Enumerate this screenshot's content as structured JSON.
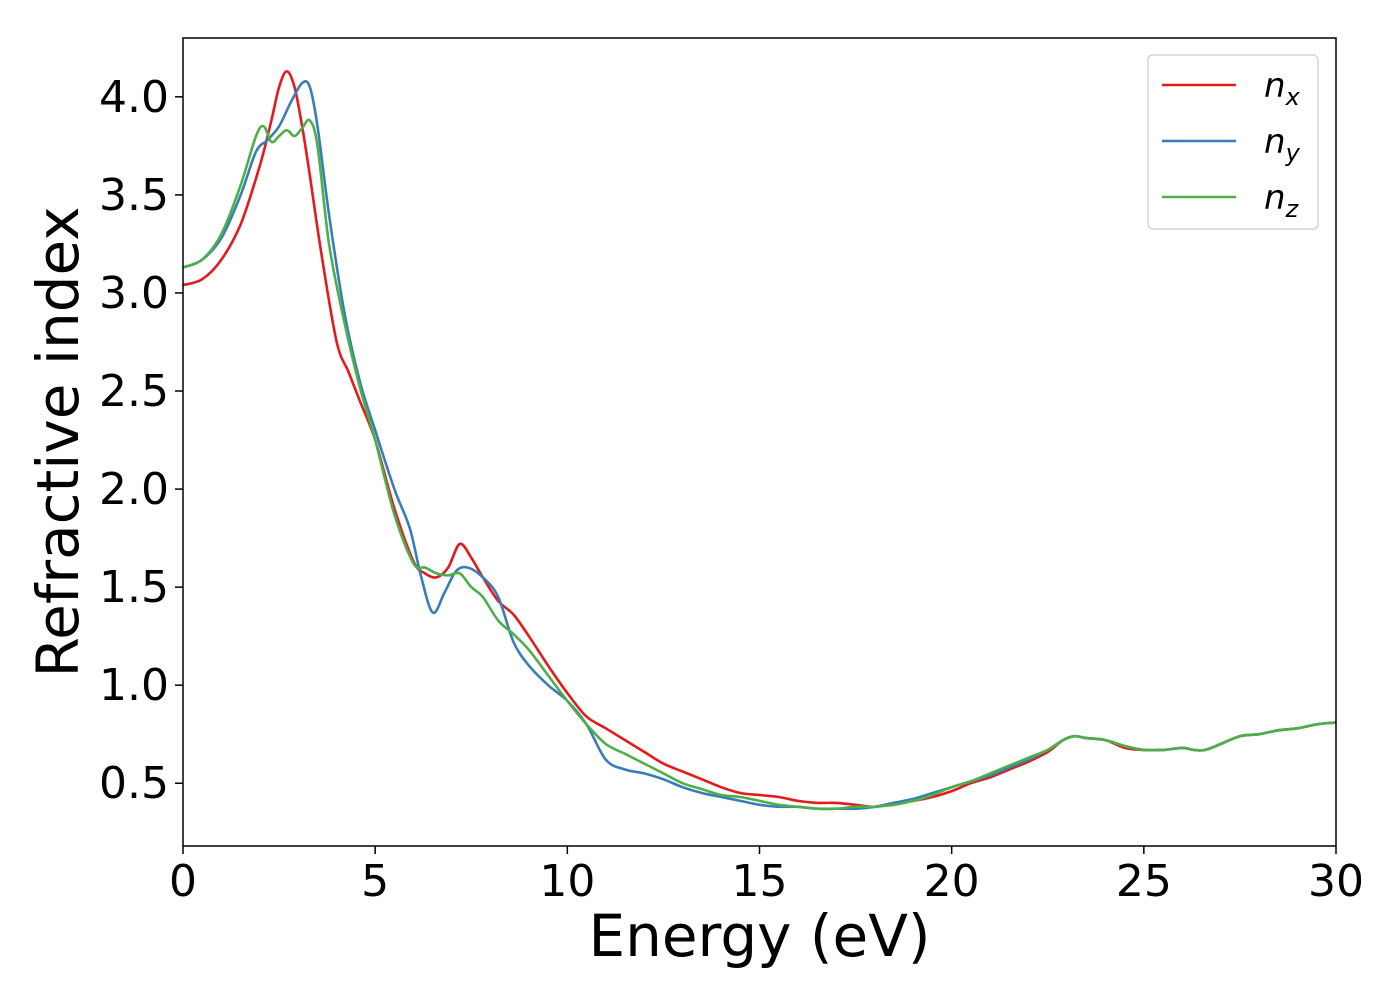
{
  "chart_data": {
    "type": "line",
    "title": "",
    "xlabel": "Energy (eV)",
    "ylabel": "Refractive index",
    "xlim": [
      0,
      30
    ],
    "ylim": [
      0.18,
      4.3
    ],
    "xticks": [
      "0",
      "5",
      "10",
      "15",
      "20",
      "25",
      "30"
    ],
    "yticks": [
      "0.5",
      "1.0",
      "1.5",
      "2.0",
      "2.5",
      "3.0",
      "3.5",
      "4.0"
    ],
    "grid": false,
    "legend_position": "top-right",
    "series": [
      {
        "name": "n_x",
        "label_main": "n",
        "label_sub": "x",
        "color": "#e41a1c",
        "x": [
          0,
          0.5,
          1.0,
          1.5,
          2.0,
          2.3,
          2.5,
          2.7,
          2.9,
          3.1,
          3.3,
          3.6,
          4.0,
          4.3,
          4.6,
          5.0,
          5.5,
          6.0,
          6.3,
          6.6,
          6.9,
          7.2,
          7.5,
          7.8,
          8.2,
          8.6,
          9.0,
          9.5,
          10.0,
          10.5,
          11.0,
          11.5,
          12.0,
          12.5,
          13.0,
          13.5,
          14.0,
          14.5,
          15.0,
          15.5,
          16.0,
          16.5,
          17.0,
          17.5,
          18.0,
          18.5,
          19.0,
          19.5,
          20.0,
          20.5,
          21.0,
          21.5,
          22.0,
          22.5,
          22.9,
          23.2,
          23.5,
          24.0,
          24.5,
          25.0,
          25.5,
          26.0,
          26.3,
          26.6,
          27.0,
          27.5,
          28.0,
          28.5,
          29.0,
          29.5,
          30.0
        ],
        "y": [
          3.04,
          3.07,
          3.17,
          3.35,
          3.65,
          3.88,
          4.05,
          4.13,
          4.05,
          3.85,
          3.6,
          3.2,
          2.75,
          2.6,
          2.45,
          2.25,
          1.9,
          1.63,
          1.57,
          1.55,
          1.6,
          1.72,
          1.65,
          1.55,
          1.43,
          1.36,
          1.25,
          1.1,
          0.96,
          0.84,
          0.78,
          0.72,
          0.66,
          0.6,
          0.56,
          0.52,
          0.48,
          0.45,
          0.44,
          0.43,
          0.41,
          0.4,
          0.4,
          0.39,
          0.38,
          0.4,
          0.41,
          0.43,
          0.46,
          0.5,
          0.53,
          0.57,
          0.61,
          0.66,
          0.72,
          0.74,
          0.73,
          0.72,
          0.68,
          0.67,
          0.67,
          0.68,
          0.67,
          0.67,
          0.7,
          0.74,
          0.75,
          0.77,
          0.78,
          0.8,
          0.81
        ]
      },
      {
        "name": "n_y",
        "label_main": "n",
        "label_sub": "y",
        "color": "#377eb8",
        "x": [
          0,
          0.5,
          1.0,
          1.5,
          1.9,
          2.2,
          2.5,
          2.8,
          3.1,
          3.3,
          3.5,
          3.8,
          4.2,
          4.6,
          5.0,
          5.5,
          5.9,
          6.2,
          6.5,
          6.8,
          7.1,
          7.4,
          7.8,
          8.2,
          8.6,
          9.0,
          9.5,
          10.0,
          10.5,
          11.0,
          11.5,
          12.0,
          12.5,
          13.0,
          13.5,
          14.0,
          14.5,
          15.0,
          15.5,
          16.0,
          16.5,
          17.0,
          17.5,
          18.0,
          18.5,
          19.0,
          19.5,
          20.0,
          20.5,
          21.0,
          21.5,
          22.0,
          22.5,
          22.9,
          23.2,
          23.5,
          24.0,
          24.5,
          25.0,
          25.5,
          26.0,
          26.3,
          26.6,
          27.0,
          27.5,
          28.0,
          28.5,
          29.0,
          29.5,
          30.0
        ],
        "y": [
          3.13,
          3.17,
          3.28,
          3.5,
          3.72,
          3.78,
          3.85,
          3.97,
          4.07,
          4.05,
          3.85,
          3.4,
          2.9,
          2.55,
          2.3,
          2.0,
          1.8,
          1.55,
          1.37,
          1.47,
          1.58,
          1.6,
          1.55,
          1.45,
          1.22,
          1.1,
          1.0,
          0.92,
          0.8,
          0.62,
          0.57,
          0.55,
          0.52,
          0.48,
          0.45,
          0.43,
          0.41,
          0.39,
          0.38,
          0.38,
          0.37,
          0.37,
          0.37,
          0.38,
          0.4,
          0.42,
          0.45,
          0.48,
          0.51,
          0.54,
          0.58,
          0.62,
          0.67,
          0.72,
          0.74,
          0.73,
          0.72,
          0.69,
          0.67,
          0.67,
          0.68,
          0.67,
          0.67,
          0.7,
          0.74,
          0.75,
          0.77,
          0.78,
          0.8,
          0.81
        ]
      },
      {
        "name": "n_z",
        "label_main": "n",
        "label_sub": "z",
        "color": "#4daf4a",
        "x": [
          0,
          0.5,
          1.0,
          1.5,
          1.9,
          2.1,
          2.3,
          2.5,
          2.7,
          2.9,
          3.1,
          3.3,
          3.5,
          3.8,
          4.2,
          4.6,
          5.0,
          5.5,
          6.0,
          6.3,
          6.6,
          6.9,
          7.2,
          7.5,
          7.8,
          8.2,
          8.6,
          9.0,
          9.5,
          10.0,
          10.5,
          11.0,
          11.5,
          12.0,
          12.5,
          13.0,
          13.5,
          14.0,
          14.5,
          15.0,
          15.5,
          16.0,
          16.5,
          17.0,
          17.5,
          18.0,
          18.5,
          19.0,
          19.5,
          20.0,
          20.5,
          21.0,
          21.5,
          22.0,
          22.5,
          22.9,
          23.2,
          23.5,
          24.0,
          24.5,
          25.0,
          25.5,
          26.0,
          26.3,
          26.6,
          27.0,
          27.5,
          28.0,
          28.5,
          29.0,
          29.5,
          30.0
        ],
        "y": [
          3.13,
          3.17,
          3.3,
          3.55,
          3.8,
          3.85,
          3.77,
          3.8,
          3.83,
          3.8,
          3.84,
          3.88,
          3.75,
          3.25,
          2.85,
          2.52,
          2.25,
          1.87,
          1.62,
          1.6,
          1.57,
          1.56,
          1.57,
          1.5,
          1.45,
          1.33,
          1.26,
          1.18,
          1.05,
          0.92,
          0.8,
          0.7,
          0.65,
          0.6,
          0.55,
          0.5,
          0.47,
          0.44,
          0.43,
          0.41,
          0.39,
          0.38,
          0.37,
          0.37,
          0.38,
          0.38,
          0.39,
          0.41,
          0.44,
          0.48,
          0.51,
          0.55,
          0.59,
          0.63,
          0.67,
          0.72,
          0.74,
          0.73,
          0.72,
          0.69,
          0.67,
          0.67,
          0.68,
          0.67,
          0.67,
          0.7,
          0.74,
          0.75,
          0.77,
          0.78,
          0.8,
          0.81
        ]
      }
    ]
  }
}
